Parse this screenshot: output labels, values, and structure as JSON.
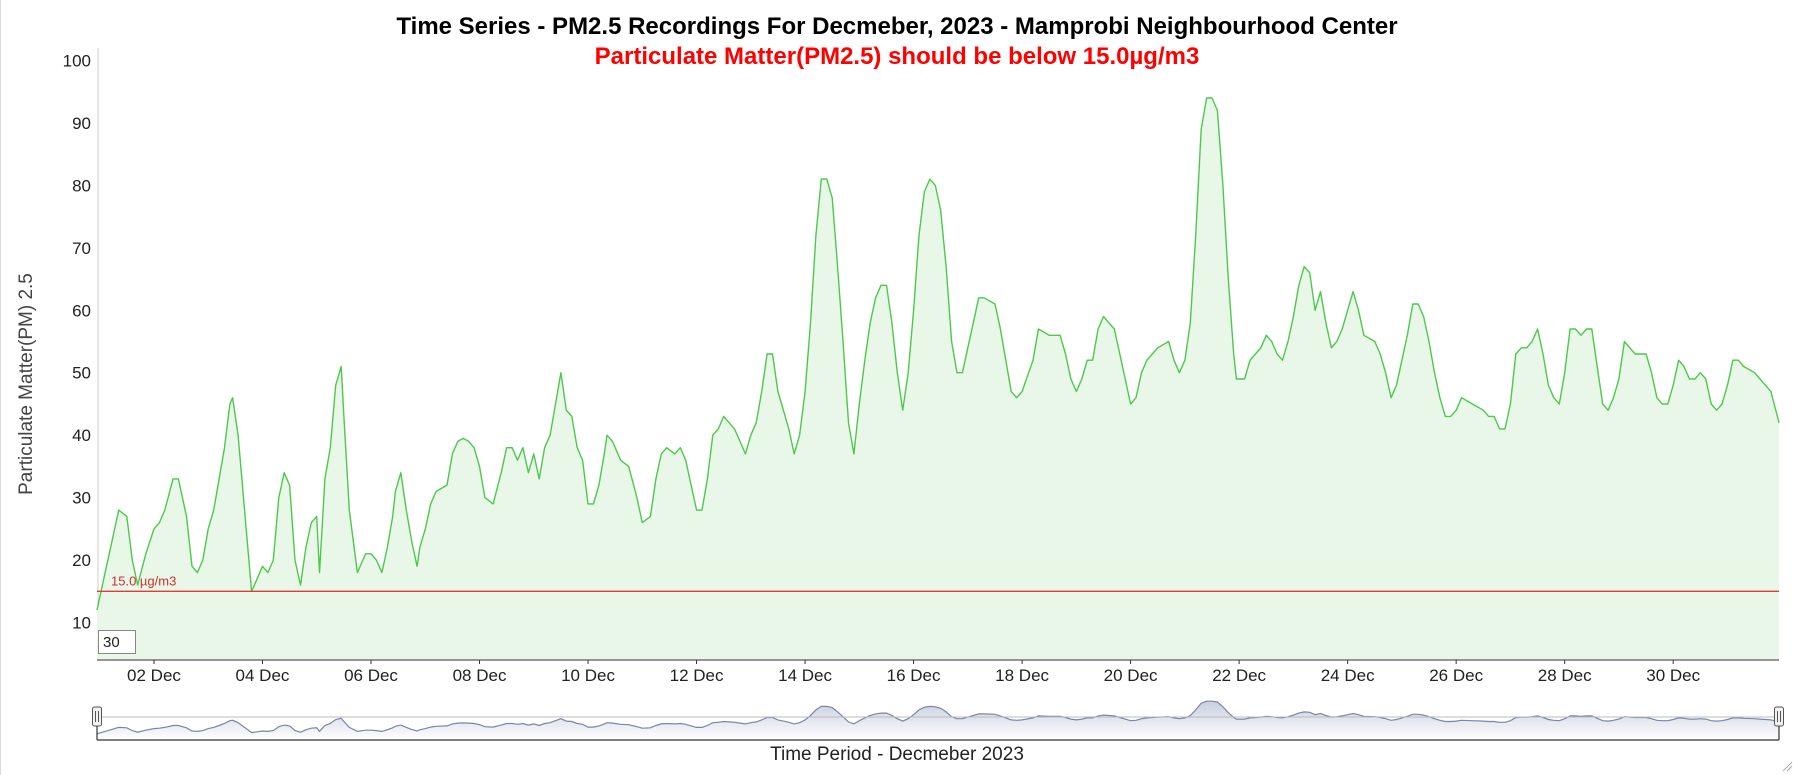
{
  "chart_data": {
    "type": "area",
    "title": "Time Series - PM2.5 Recordings For Decmeber, 2023 - Mamprobi Neighbourhood Center",
    "subtitle": "Particulate Matter(PM2.5) should be below 15.0µg/m3",
    "ylabel": "Particulate Matter(PM) 2.5",
    "xlabel": "Time Period - Decmeber 2023",
    "ylim": [
      4,
      102
    ],
    "yticks": [
      10,
      20,
      30,
      40,
      50,
      60,
      70,
      80,
      90,
      100
    ],
    "xlim": [
      0.95,
      31.95
    ],
    "xticks": [
      {
        "x": 2,
        "label": "02 Dec"
      },
      {
        "x": 4,
        "label": "04 Dec"
      },
      {
        "x": 6,
        "label": "06 Dec"
      },
      {
        "x": 8,
        "label": "08 Dec"
      },
      {
        "x": 10,
        "label": "10 Dec"
      },
      {
        "x": 12,
        "label": "12 Dec"
      },
      {
        "x": 14,
        "label": "14 Dec"
      },
      {
        "x": 16,
        "label": "16 Dec"
      },
      {
        "x": 18,
        "label": "18 Dec"
      },
      {
        "x": 20,
        "label": "20 Dec"
      },
      {
        "x": 22,
        "label": "22 Dec"
      },
      {
        "x": 24,
        "label": "24 Dec"
      },
      {
        "x": 26,
        "label": "26 Dec"
      },
      {
        "x": 28,
        "label": "28 Dec"
      },
      {
        "x": 30,
        "label": "30 Dec"
      }
    ],
    "threshold": {
      "value": 15.0,
      "label": "15.0 µg/m3",
      "color": "#e53935"
    },
    "series": [
      {
        "color": "#4cc94c",
        "fill": "#e8f7e8",
        "points": [
          [
            0.95,
            12
          ],
          [
            1.1,
            18
          ],
          [
            1.2,
            22
          ],
          [
            1.35,
            28
          ],
          [
            1.5,
            27
          ],
          [
            1.6,
            20
          ],
          [
            1.7,
            16
          ],
          [
            1.85,
            21
          ],
          [
            2.0,
            25
          ],
          [
            2.1,
            26
          ],
          [
            2.2,
            28
          ],
          [
            2.35,
            33
          ],
          [
            2.45,
            33
          ],
          [
            2.6,
            27
          ],
          [
            2.7,
            19
          ],
          [
            2.8,
            18
          ],
          [
            2.9,
            20
          ],
          [
            3.0,
            25
          ],
          [
            3.1,
            28
          ],
          [
            3.2,
            33
          ],
          [
            3.3,
            38
          ],
          [
            3.4,
            45
          ],
          [
            3.45,
            46
          ],
          [
            3.55,
            40
          ],
          [
            3.7,
            25
          ],
          [
            3.8,
            15
          ],
          [
            3.9,
            17
          ],
          [
            4.0,
            19
          ],
          [
            4.1,
            18
          ],
          [
            4.2,
            20
          ],
          [
            4.3,
            30
          ],
          [
            4.4,
            34
          ],
          [
            4.5,
            32
          ],
          [
            4.6,
            20
          ],
          [
            4.7,
            16
          ],
          [
            4.8,
            22
          ],
          [
            4.9,
            26
          ],
          [
            5.0,
            27
          ],
          [
            5.05,
            18
          ],
          [
            5.15,
            33
          ],
          [
            5.25,
            38
          ],
          [
            5.35,
            48
          ],
          [
            5.45,
            51
          ],
          [
            5.5,
            43
          ],
          [
            5.6,
            28
          ],
          [
            5.75,
            18
          ],
          [
            5.9,
            21
          ],
          [
            6.0,
            21
          ],
          [
            6.1,
            20
          ],
          [
            6.2,
            18
          ],
          [
            6.3,
            22
          ],
          [
            6.4,
            27
          ],
          [
            6.45,
            31
          ],
          [
            6.55,
            34
          ],
          [
            6.65,
            28
          ],
          [
            6.75,
            23
          ],
          [
            6.85,
            19
          ],
          [
            6.9,
            22
          ],
          [
            7.0,
            25
          ],
          [
            7.1,
            29
          ],
          [
            7.2,
            31
          ],
          [
            7.4,
            32
          ],
          [
            7.5,
            37
          ],
          [
            7.6,
            39
          ],
          [
            7.7,
            39.5
          ],
          [
            7.8,
            39
          ],
          [
            7.9,
            38
          ],
          [
            8.0,
            35
          ],
          [
            8.1,
            30
          ],
          [
            8.25,
            29
          ],
          [
            8.4,
            34
          ],
          [
            8.5,
            38
          ],
          [
            8.6,
            38
          ],
          [
            8.7,
            36
          ],
          [
            8.8,
            38
          ],
          [
            8.9,
            34
          ],
          [
            9.0,
            37
          ],
          [
            9.1,
            33
          ],
          [
            9.2,
            38
          ],
          [
            9.3,
            40
          ],
          [
            9.4,
            45
          ],
          [
            9.5,
            50
          ],
          [
            9.6,
            44
          ],
          [
            9.7,
            43
          ],
          [
            9.8,
            38
          ],
          [
            9.9,
            36
          ],
          [
            10.0,
            29
          ],
          [
            10.1,
            29
          ],
          [
            10.2,
            32
          ],
          [
            10.3,
            37
          ],
          [
            10.35,
            40
          ],
          [
            10.45,
            39
          ],
          [
            10.6,
            36
          ],
          [
            10.75,
            35
          ],
          [
            10.9,
            30
          ],
          [
            11.0,
            26
          ],
          [
            11.15,
            27
          ],
          [
            11.25,
            33
          ],
          [
            11.35,
            37
          ],
          [
            11.45,
            38
          ],
          [
            11.6,
            37
          ],
          [
            11.7,
            38
          ],
          [
            11.8,
            36
          ],
          [
            11.9,
            32
          ],
          [
            12.0,
            28
          ],
          [
            12.1,
            28
          ],
          [
            12.2,
            33
          ],
          [
            12.3,
            40
          ],
          [
            12.4,
            41
          ],
          [
            12.5,
            43
          ],
          [
            12.6,
            42
          ],
          [
            12.7,
            41
          ],
          [
            12.8,
            39
          ],
          [
            12.9,
            37
          ],
          [
            13.0,
            40
          ],
          [
            13.1,
            42
          ],
          [
            13.2,
            47
          ],
          [
            13.3,
            53
          ],
          [
            13.4,
            53
          ],
          [
            13.5,
            47
          ],
          [
            13.6,
            44
          ],
          [
            13.7,
            41
          ],
          [
            13.8,
            37
          ],
          [
            13.9,
            40
          ],
          [
            14.0,
            47
          ],
          [
            14.1,
            58
          ],
          [
            14.2,
            72
          ],
          [
            14.3,
            81
          ],
          [
            14.4,
            81
          ],
          [
            14.5,
            78
          ],
          [
            14.6,
            67
          ],
          [
            14.7,
            55
          ],
          [
            14.8,
            42
          ],
          [
            14.9,
            37
          ],
          [
            15.0,
            45
          ],
          [
            15.1,
            52
          ],
          [
            15.2,
            58
          ],
          [
            15.3,
            62
          ],
          [
            15.4,
            64
          ],
          [
            15.5,
            64
          ],
          [
            15.6,
            58
          ],
          [
            15.7,
            50
          ],
          [
            15.8,
            44
          ],
          [
            15.9,
            50
          ],
          [
            16.0,
            60
          ],
          [
            16.1,
            72
          ],
          [
            16.2,
            79
          ],
          [
            16.3,
            81
          ],
          [
            16.4,
            80
          ],
          [
            16.5,
            76
          ],
          [
            16.6,
            67
          ],
          [
            16.7,
            55
          ],
          [
            16.8,
            50
          ],
          [
            16.9,
            50
          ],
          [
            17.0,
            54
          ],
          [
            17.1,
            58
          ],
          [
            17.2,
            62
          ],
          [
            17.3,
            62
          ],
          [
            17.5,
            61
          ],
          [
            17.6,
            57
          ],
          [
            17.7,
            52
          ],
          [
            17.8,
            47
          ],
          [
            17.9,
            46
          ],
          [
            18.0,
            47
          ],
          [
            18.2,
            52
          ],
          [
            18.3,
            57
          ],
          [
            18.5,
            56
          ],
          [
            18.7,
            56
          ],
          [
            18.8,
            53
          ],
          [
            18.9,
            49
          ],
          [
            19.0,
            47
          ],
          [
            19.1,
            49
          ],
          [
            19.2,
            52
          ],
          [
            19.3,
            52
          ],
          [
            19.4,
            57
          ],
          [
            19.5,
            59
          ],
          [
            19.6,
            58
          ],
          [
            19.7,
            57
          ],
          [
            19.8,
            53
          ],
          [
            19.9,
            49
          ],
          [
            20.0,
            45
          ],
          [
            20.1,
            46
          ],
          [
            20.2,
            50
          ],
          [
            20.3,
            52
          ],
          [
            20.4,
            53
          ],
          [
            20.5,
            54
          ],
          [
            20.7,
            55
          ],
          [
            20.8,
            52
          ],
          [
            20.9,
            50
          ],
          [
            21.0,
            52
          ],
          [
            21.1,
            58
          ],
          [
            21.2,
            72
          ],
          [
            21.3,
            89
          ],
          [
            21.4,
            94
          ],
          [
            21.5,
            94
          ],
          [
            21.6,
            92
          ],
          [
            21.7,
            80
          ],
          [
            21.8,
            65
          ],
          [
            21.9,
            53
          ],
          [
            21.95,
            49
          ],
          [
            22.1,
            49
          ],
          [
            22.2,
            52
          ],
          [
            22.3,
            53
          ],
          [
            22.4,
            54
          ],
          [
            22.5,
            56
          ],
          [
            22.6,
            55
          ],
          [
            22.7,
            53
          ],
          [
            22.8,
            52
          ],
          [
            22.9,
            55
          ],
          [
            23.0,
            59
          ],
          [
            23.1,
            64
          ],
          [
            23.2,
            67
          ],
          [
            23.3,
            66
          ],
          [
            23.4,
            60
          ],
          [
            23.5,
            63
          ],
          [
            23.6,
            58
          ],
          [
            23.7,
            54
          ],
          [
            23.8,
            55
          ],
          [
            23.9,
            57
          ],
          [
            24.0,
            60
          ],
          [
            24.1,
            63
          ],
          [
            24.2,
            60
          ],
          [
            24.3,
            56
          ],
          [
            24.5,
            55
          ],
          [
            24.6,
            53
          ],
          [
            24.7,
            50
          ],
          [
            24.8,
            46
          ],
          [
            24.9,
            48
          ],
          [
            25.0,
            52
          ],
          [
            25.1,
            56
          ],
          [
            25.2,
            61
          ],
          [
            25.3,
            61
          ],
          [
            25.4,
            59
          ],
          [
            25.5,
            55
          ],
          [
            25.6,
            50
          ],
          [
            25.7,
            46
          ],
          [
            25.8,
            43
          ],
          [
            25.9,
            43
          ],
          [
            26.0,
            44
          ],
          [
            26.1,
            46
          ],
          [
            26.3,
            45
          ],
          [
            26.5,
            44
          ],
          [
            26.6,
            43
          ],
          [
            26.7,
            43
          ],
          [
            26.8,
            41
          ],
          [
            26.9,
            41
          ],
          [
            27.0,
            45
          ],
          [
            27.1,
            53
          ],
          [
            27.2,
            54
          ],
          [
            27.3,
            54
          ],
          [
            27.4,
            55
          ],
          [
            27.5,
            57
          ],
          [
            27.6,
            53
          ],
          [
            27.7,
            48
          ],
          [
            27.8,
            46
          ],
          [
            27.9,
            45
          ],
          [
            28.0,
            50
          ],
          [
            28.1,
            57
          ],
          [
            28.2,
            57
          ],
          [
            28.3,
            56
          ],
          [
            28.4,
            57
          ],
          [
            28.5,
            57
          ],
          [
            28.6,
            51
          ],
          [
            28.7,
            45
          ],
          [
            28.8,
            44
          ],
          [
            28.9,
            46
          ],
          [
            29.0,
            49
          ],
          [
            29.1,
            55
          ],
          [
            29.2,
            54
          ],
          [
            29.3,
            53
          ],
          [
            29.5,
            53
          ],
          [
            29.6,
            50
          ],
          [
            29.7,
            46
          ],
          [
            29.8,
            45
          ],
          [
            29.9,
            45
          ],
          [
            30.0,
            48
          ],
          [
            30.1,
            52
          ],
          [
            30.2,
            51
          ],
          [
            30.3,
            49
          ],
          [
            30.4,
            49
          ],
          [
            30.5,
            50
          ],
          [
            30.6,
            49
          ],
          [
            30.7,
            45
          ],
          [
            30.8,
            44
          ],
          [
            30.9,
            45
          ],
          [
            31.0,
            48
          ],
          [
            31.1,
            52
          ],
          [
            31.2,
            52
          ],
          [
            31.3,
            51
          ],
          [
            31.5,
            50
          ],
          [
            31.6,
            49
          ],
          [
            31.7,
            48
          ],
          [
            31.8,
            47
          ],
          [
            31.95,
            42
          ]
        ]
      }
    ]
  },
  "controls": {
    "period_value": "30"
  },
  "colors": {
    "line": "#4cc94c",
    "area": "#e8f7e8",
    "navigator_line": "#7a86a8",
    "navigator_fill": "#c9cfe0"
  }
}
